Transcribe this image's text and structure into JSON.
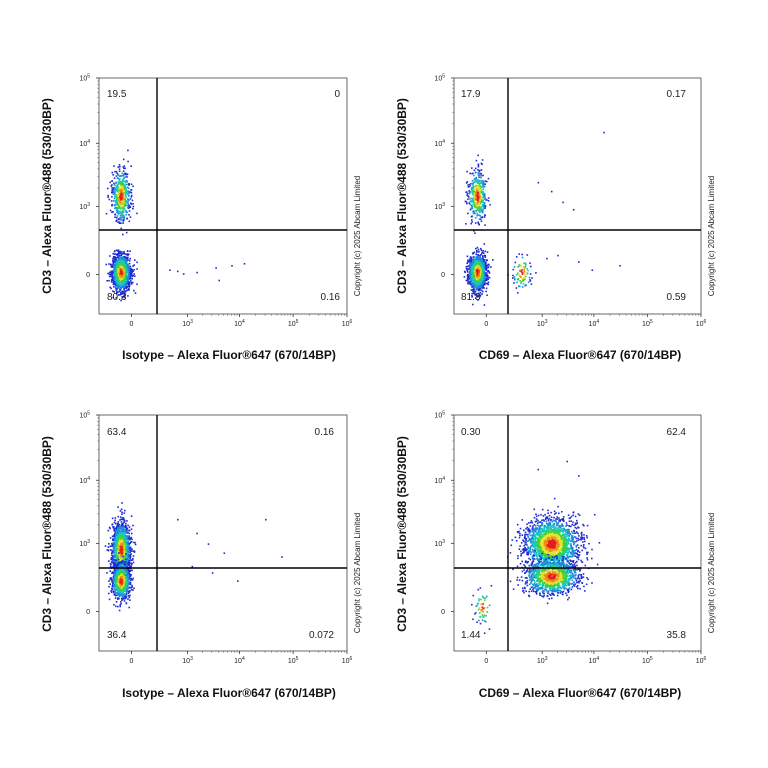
{
  "copyright": "Copyright (c) 2025 Abcam Limited",
  "chart_data": [
    {
      "type": "scatter",
      "xlabel": "Isotype – Alexa Fluor®647 (670/14BP)",
      "ylabel": "CD3 – Alexa Fluor®488 (530/30BP)",
      "x_scale": "biexponential",
      "y_scale": "biexponential",
      "xlim": [
        -300,
        1000000
      ],
      "ylim": [
        -300,
        100000
      ],
      "x_ticks": [
        {
          "base": "0",
          "exp": ""
        },
        {
          "base": "10",
          "exp": "3"
        },
        {
          "base": "10",
          "exp": "4"
        },
        {
          "base": "10",
          "exp": "5"
        },
        {
          "base": "10",
          "exp": "6"
        }
      ],
      "y_ticks": [
        {
          "base": "0",
          "exp": ""
        },
        {
          "base": "10",
          "exp": "3"
        },
        {
          "base": "10",
          "exp": "4"
        },
        {
          "base": "10",
          "exp": "5"
        }
      ],
      "quadrants": {
        "upper_left": "19.5",
        "upper_right": "0",
        "lower_left": "80.3",
        "lower_right": "0.16"
      },
      "gate": {
        "x": 200,
        "y": 350
      },
      "populations": [
        {
          "x": -60,
          "y": 1500,
          "count": 500
        },
        {
          "x": -60,
          "y": 10,
          "count": 1200
        }
      ],
      "outliers": [
        [
          400,
          20
        ],
        [
          600,
          15
        ],
        [
          1500,
          10
        ],
        [
          3500,
          30
        ],
        [
          7000,
          40
        ],
        [
          12000,
          50
        ],
        [
          4000,
          -20
        ],
        [
          800,
          5
        ]
      ]
    },
    {
      "type": "scatter",
      "xlabel": "CD69 – Alexa Fluor®647 (670/14BP)",
      "ylabel": "CD3 – Alexa Fluor®488 (530/30BP)",
      "x_scale": "biexponential",
      "y_scale": "biexponential",
      "xlim": [
        -300,
        1000000
      ],
      "ylim": [
        -300,
        100000
      ],
      "x_ticks": [
        {
          "base": "0",
          "exp": ""
        },
        {
          "base": "10",
          "exp": "3"
        },
        {
          "base": "10",
          "exp": "4"
        },
        {
          "base": "10",
          "exp": "5"
        },
        {
          "base": "10",
          "exp": "6"
        }
      ],
      "y_ticks": [
        {
          "base": "0",
          "exp": ""
        },
        {
          "base": "10",
          "exp": "3"
        },
        {
          "base": "10",
          "exp": "4"
        },
        {
          "base": "10",
          "exp": "5"
        }
      ],
      "quadrants": {
        "upper_left": "17.9",
        "upper_right": "0.17",
        "lower_left": "81.3",
        "lower_right": "0.59"
      },
      "gate": {
        "x": 200,
        "y": 350
      },
      "populations": [
        {
          "x": -50,
          "y": 1500,
          "count": 450
        },
        {
          "x": -50,
          "y": 10,
          "count": 1100
        },
        {
          "x": 350,
          "y": 10,
          "count": 90
        }
      ],
      "outliers": [
        [
          800,
          2500
        ],
        [
          1500,
          1800
        ],
        [
          2500,
          1200
        ],
        [
          4000,
          900
        ],
        [
          15000,
          15000
        ],
        [
          1200,
          80
        ],
        [
          2000,
          100
        ],
        [
          5000,
          60
        ],
        [
          30000,
          40
        ],
        [
          9000,
          20
        ]
      ]
    },
    {
      "type": "scatter",
      "xlabel": "Isotype – Alexa Fluor®647 (670/14BP)",
      "ylabel": "CD3 – Alexa Fluor®488 (530/30BP)",
      "x_scale": "biexponential",
      "y_scale": "biexponential",
      "xlim": [
        -300,
        1000000
      ],
      "ylim": [
        -300,
        100000
      ],
      "x_ticks": [
        {
          "base": "0",
          "exp": ""
        },
        {
          "base": "10",
          "exp": "3"
        },
        {
          "base": "10",
          "exp": "4"
        },
        {
          "base": "10",
          "exp": "5"
        },
        {
          "base": "10",
          "exp": "6"
        }
      ],
      "y_ticks": [
        {
          "base": "0",
          "exp": ""
        },
        {
          "base": "10",
          "exp": "3"
        },
        {
          "base": "10",
          "exp": "4"
        },
        {
          "base": "10",
          "exp": "5"
        }
      ],
      "quadrants": {
        "upper_left": "63.4",
        "upper_right": "0.16",
        "lower_left": "36.4",
        "lower_right": "0.072"
      },
      "gate": {
        "x": 200,
        "y": 350
      },
      "populations": [
        {
          "x": -60,
          "y": 800,
          "count": 1500
        },
        {
          "x": -60,
          "y": 200,
          "count": 900
        }
      ],
      "outliers": [
        [
          600,
          2500
        ],
        [
          1500,
          1500
        ],
        [
          2500,
          1000
        ],
        [
          5000,
          700
        ],
        [
          30000,
          2500
        ],
        [
          60000,
          600
        ],
        [
          1200,
          400
        ],
        [
          3000,
          300
        ],
        [
          9000,
          200
        ]
      ]
    },
    {
      "type": "scatter",
      "xlabel": "CD69 – Alexa Fluor®647 (670/14BP)",
      "ylabel": "CD3 – Alexa Fluor®488 (530/30BP)",
      "x_scale": "biexponential",
      "y_scale": "biexponential",
      "xlim": [
        -300,
        1000000
      ],
      "ylim": [
        -300,
        100000
      ],
      "x_ticks": [
        {
          "base": "0",
          "exp": ""
        },
        {
          "base": "10",
          "exp": "3"
        },
        {
          "base": "10",
          "exp": "4"
        },
        {
          "base": "10",
          "exp": "5"
        },
        {
          "base": "10",
          "exp": "6"
        }
      ],
      "y_ticks": [
        {
          "base": "0",
          "exp": ""
        },
        {
          "base": "10",
          "exp": "3"
        },
        {
          "base": "10",
          "exp": "4"
        },
        {
          "base": "10",
          "exp": "5"
        }
      ],
      "quadrants": {
        "upper_left": "0.30",
        "upper_right": "62.4",
        "lower_left": "1.44",
        "lower_right": "35.8"
      },
      "gate": {
        "x": 200,
        "y": 350
      },
      "populations": [
        {
          "x": 1500,
          "y": 1000,
          "count": 1800
        },
        {
          "x": 1500,
          "y": 250,
          "count": 1100
        },
        {
          "x": -20,
          "y": 20,
          "count": 60
        }
      ],
      "outliers": [
        [
          3000,
          20000
        ],
        [
          800,
          15000
        ],
        [
          5000,
          12000
        ],
        [
          2000,
          4000
        ],
        [
          10000,
          3000
        ]
      ]
    }
  ]
}
